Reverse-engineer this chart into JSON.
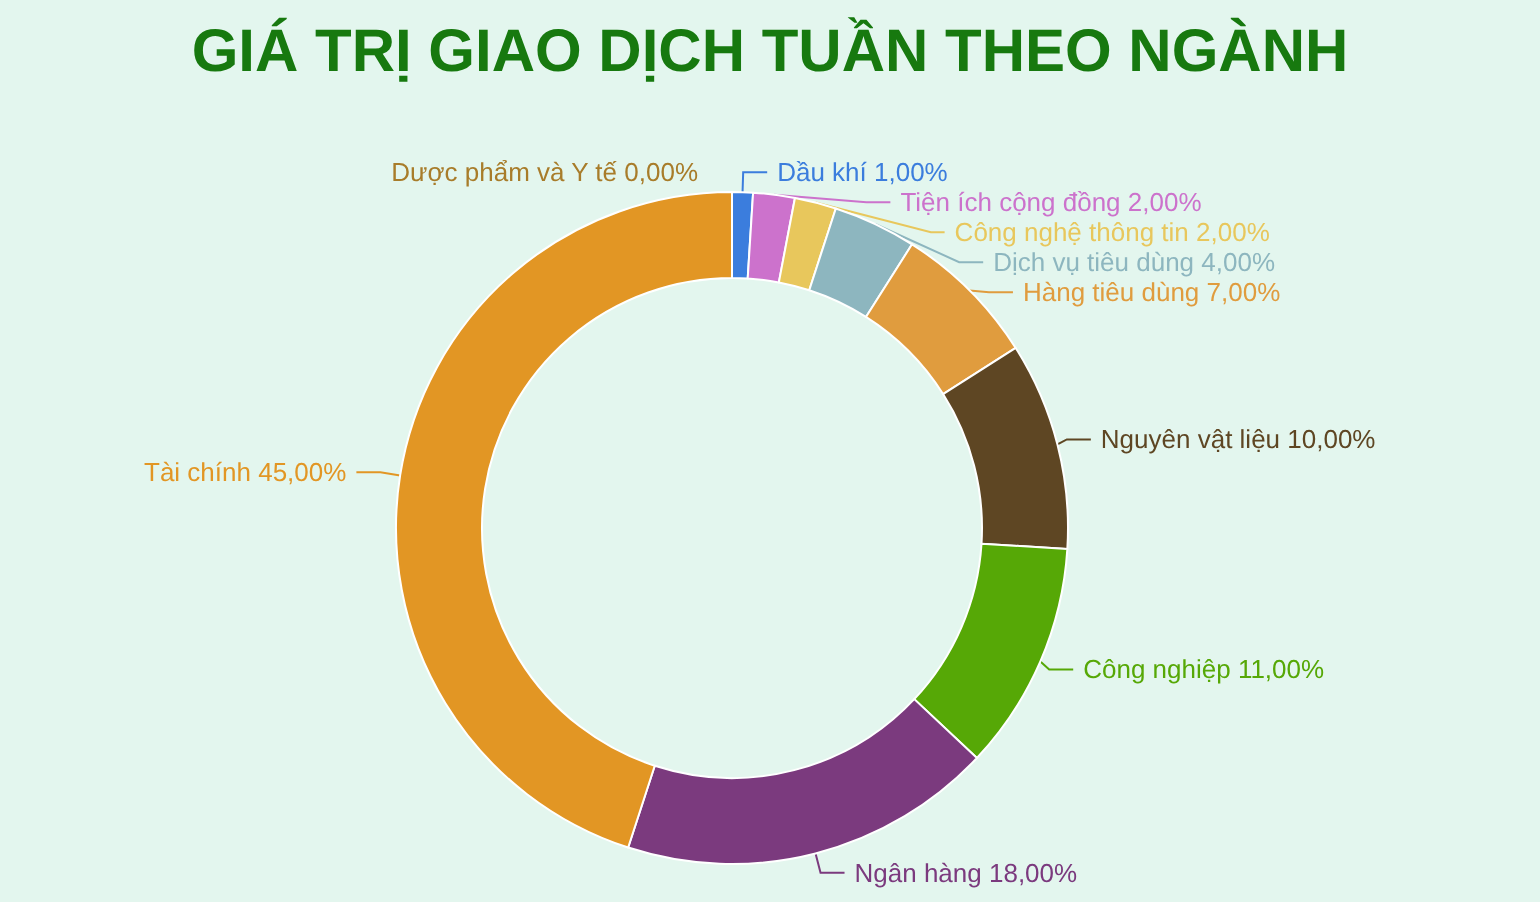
{
  "chart_data": {
    "type": "donut",
    "title": "GIÁ TRỊ GIAO DỊCH TUẦN THEO NGÀNH",
    "categories": [
      "Dược phẩm và Y tế",
      "Dầu khí",
      "Tiện ích cộng đồng",
      "Công nghệ thông tin",
      "Dịch vụ tiêu dùng",
      "Hàng tiêu dùng",
      "Nguyên vật liệu",
      "Công nghiệp",
      "Ngân hàng",
      "Tài chính"
    ],
    "values": [
      0,
      1,
      2,
      2,
      4,
      7,
      10,
      11,
      18,
      45
    ],
    "value_labels": [
      "0,00%",
      "1,00%",
      "2,00%",
      "2,00%",
      "4,00%",
      "7,00%",
      "10,00%",
      "11,00%",
      "18,00%",
      "45,00%"
    ],
    "colors": [
      "#a87c2a",
      "#3b7ddd",
      "#cc72cc",
      "#e8c75c",
      "#8db6bf",
      "#e09c3e",
      "#5e4623",
      "#56a806",
      "#7b3a7e",
      "#e29624"
    ],
    "legend": false
  }
}
